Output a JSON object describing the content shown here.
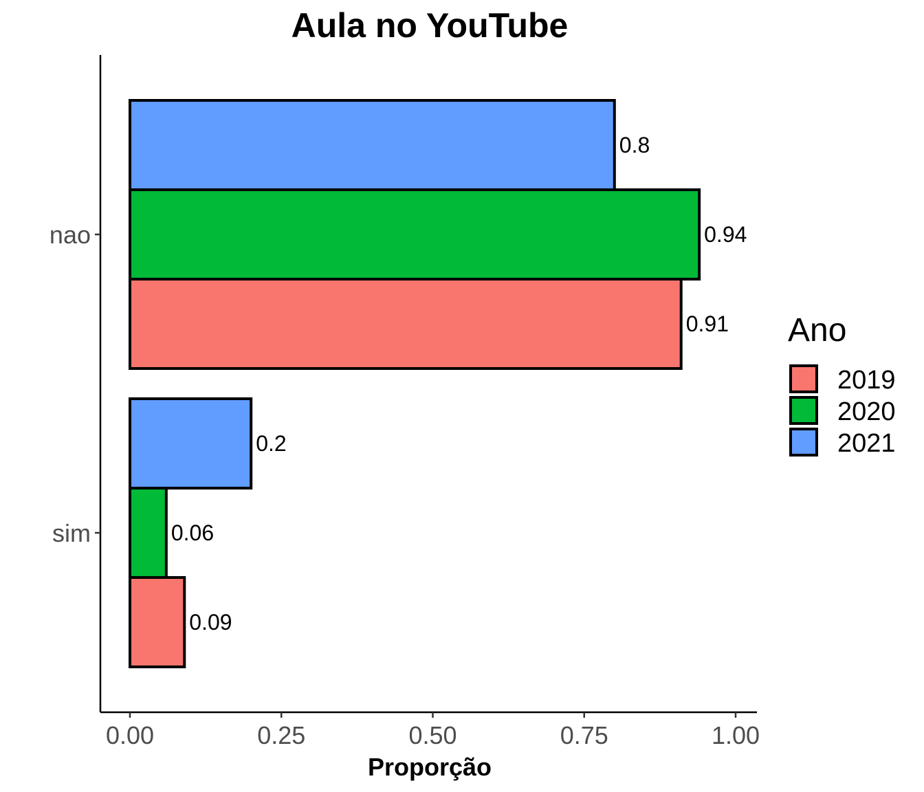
{
  "chart_data": {
    "type": "bar",
    "orientation": "horizontal",
    "title": "Aula no YouTube",
    "xlabel": "Proporção",
    "ylabel": "",
    "xlim": [
      0,
      1
    ],
    "x_ticks": [
      "0.00",
      "0.25",
      "0.50",
      "0.75",
      "1.00"
    ],
    "x_tick_values": [
      0,
      0.25,
      0.5,
      0.75,
      1.0
    ],
    "categories": [
      "nao",
      "sim"
    ],
    "series": [
      {
        "name": "2019",
        "color": "#F8766D",
        "values": [
          0.91,
          0.09
        ],
        "labels": [
          "0.91",
          "0.09"
        ]
      },
      {
        "name": "2020",
        "color": "#00BA38",
        "values": [
          0.94,
          0.06
        ],
        "labels": [
          "0.94",
          "0.06"
        ]
      },
      {
        "name": "2021",
        "color": "#619CFF",
        "values": [
          0.8,
          0.2
        ],
        "labels": [
          "0.8",
          "0.2"
        ]
      }
    ],
    "legend": {
      "title": "Ano",
      "position": "right"
    },
    "grid": false
  }
}
